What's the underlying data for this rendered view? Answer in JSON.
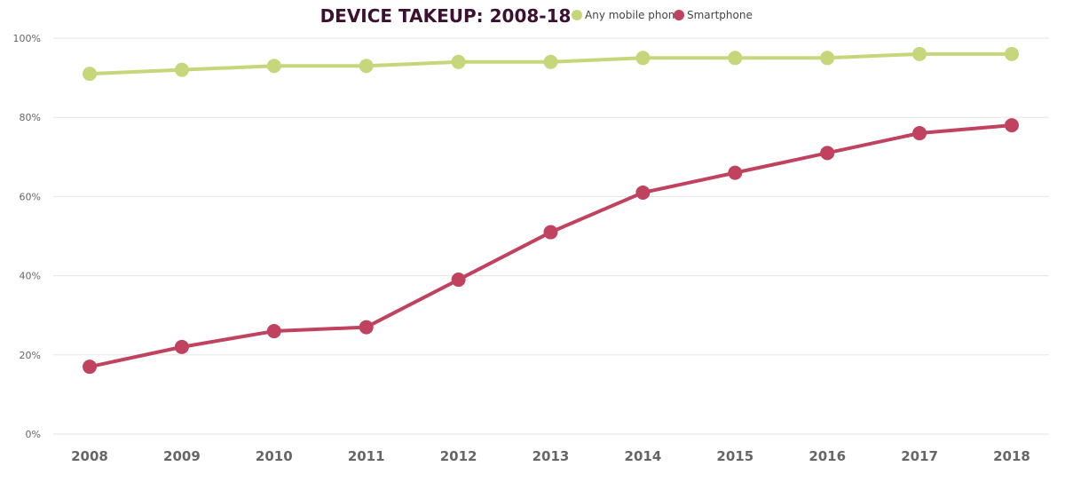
{
  "chart_data": {
    "type": "line",
    "title": "DEVICE TAKEUP: 2008-18",
    "xlabel": "",
    "ylabel": "",
    "ylim": [
      0,
      100
    ],
    "yticks": [
      "0%",
      "20%",
      "40%",
      "60%",
      "80%",
      "100%"
    ],
    "ytick_values": [
      0,
      20,
      40,
      60,
      80,
      100
    ],
    "grid": true,
    "legend_position": "top",
    "x": [
      "2008",
      "2009",
      "2010",
      "2011",
      "2012",
      "2013",
      "2014",
      "2015",
      "2016",
      "2017",
      "2018"
    ],
    "series": [
      {
        "name": "Any mobile phone",
        "color": "#c5d77a",
        "values": [
          91,
          92,
          93,
          93,
          94,
          94,
          95,
          95,
          95,
          96,
          96
        ]
      },
      {
        "name": "Smartphone",
        "color": "#c0425f",
        "values": [
          17,
          22,
          26,
          27,
          39,
          51,
          61,
          66,
          71,
          76,
          78
        ]
      }
    ]
  }
}
